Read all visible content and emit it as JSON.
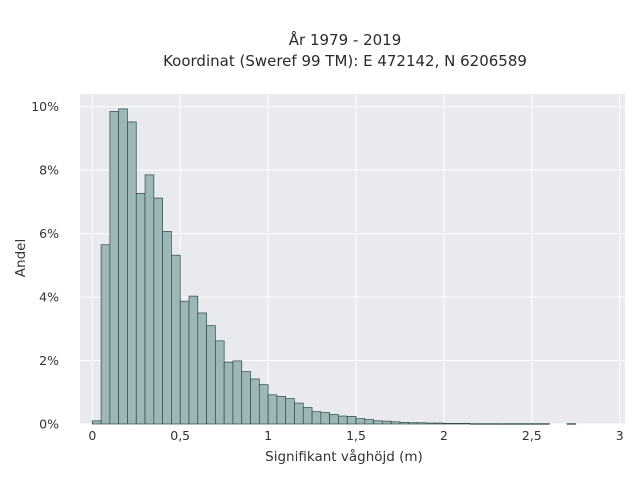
{
  "chart_data": {
    "type": "bar",
    "title": "År 1979 - 2019",
    "subtitle": "Koordinat (Sweref 99 TM): E 472142, N 6206589",
    "xlabel": "Signifikant våghöjd (m)",
    "ylabel": "Andel",
    "xlim": [
      -0.07,
      3.03
    ],
    "ylim": [
      0,
      0.104
    ],
    "x_ticks": [
      0,
      0.5,
      1,
      1.5,
      2,
      2.5,
      3
    ],
    "x_tick_labels": [
      "0",
      "0,5",
      "1",
      "1,5",
      "2",
      "2,5",
      "3"
    ],
    "y_ticks": [
      0,
      0.02,
      0.04,
      0.06,
      0.08,
      0.1
    ],
    "y_tick_labels": [
      "0%",
      "2%",
      "4%",
      "6%",
      "8%",
      "10%"
    ],
    "grid": true,
    "legend": "none",
    "bin_width": 0.05,
    "bins_start": [
      0.0,
      0.05,
      0.1,
      0.15,
      0.2,
      0.25,
      0.3,
      0.35,
      0.4,
      0.45,
      0.5,
      0.55,
      0.6,
      0.65,
      0.7,
      0.75,
      0.8,
      0.85,
      0.9,
      0.95,
      1.0,
      1.05,
      1.1,
      1.15,
      1.2,
      1.25,
      1.3,
      1.35,
      1.4,
      1.45,
      1.5,
      1.55,
      1.6,
      1.65,
      1.7,
      1.75,
      1.8,
      1.85,
      1.9,
      1.95,
      2.0,
      2.05,
      2.1,
      2.15,
      2.2,
      2.25,
      2.3,
      2.35,
      2.4,
      2.45,
      2.5,
      2.55,
      2.6,
      2.65,
      2.7,
      2.75
    ],
    "values": [
      0.001,
      0.0565,
      0.0985,
      0.0993,
      0.0952,
      0.0727,
      0.0785,
      0.0712,
      0.0607,
      0.0532,
      0.0387,
      0.0403,
      0.035,
      0.031,
      0.0262,
      0.0195,
      0.0199,
      0.0165,
      0.0142,
      0.0124,
      0.0092,
      0.0087,
      0.008,
      0.0066,
      0.0052,
      0.0039,
      0.0036,
      0.003,
      0.0025,
      0.0024,
      0.0017,
      0.0014,
      0.001,
      0.0009,
      0.0007,
      0.0005,
      0.0004,
      0.0004,
      0.0003,
      0.0003,
      0.0002,
      0.0002,
      0.0002,
      0.0001,
      0.0001,
      0.0001,
      0.0001,
      0.0001,
      0.0001,
      0.0001,
      0.0001,
      0.0001,
      0,
      0,
      0.0001,
      0
    ],
    "colors": {
      "bar_fill": "#9db6b6",
      "bar_stroke": "#2f4a4a",
      "plot_bg": "#e9e9f0",
      "grid": "#ffffff"
    }
  }
}
